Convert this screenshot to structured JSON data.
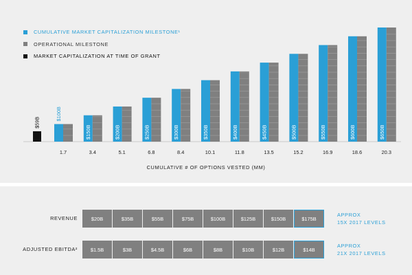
{
  "chart_data": {
    "type": "bar",
    "legend": [
      {
        "label": "CUMULATIVE MARKET CAPITALIZATION MILESTONE¹",
        "color": "#2a9fd6"
      },
      {
        "label": "OPERATIONAL MILESTONE",
        "color": "#808080"
      },
      {
        "label": "MARKET CAPITALIZATION AT TIME OF GRANT",
        "color": "#111111"
      }
    ],
    "grant_bar": {
      "value": 59,
      "label": "$59B",
      "color": "#111111"
    },
    "categories": [
      "1.7",
      "3.4",
      "5.1",
      "6.8",
      "8.4",
      "10.1",
      "11.8",
      "13.5",
      "15.2",
      "16.9",
      "18.6",
      "20.3"
    ],
    "milestones": [
      100,
      150,
      200,
      250,
      300,
      350,
      400,
      450,
      500,
      550,
      600,
      650
    ],
    "milestone_labels": [
      "$100B",
      "$150B",
      "$200B",
      "$250B",
      "$300B",
      "$350B",
      "$400B",
      "$450B",
      "$500B",
      "$550B",
      "$600B",
      "$650B"
    ],
    "operational": [
      100,
      150,
      200,
      250,
      300,
      350,
      400,
      450,
      500,
      550,
      600,
      650
    ],
    "xlabel": "CUMULATIVE # OF OPTIONS VESTED (MM)",
    "ylim": [
      0,
      650
    ],
    "colors": {
      "blue": "#2a9fd6",
      "gray": "#808080",
      "black": "#111111",
      "stripe": "#a0a0a0"
    }
  },
  "table": {
    "revenue": {
      "label": "REVENUE",
      "values": [
        "$20B",
        "$35B",
        "$55B",
        "$75B",
        "$100B",
        "$125B",
        "$150B",
        "$175B"
      ],
      "note_line1": "APPROX",
      "note_line2": "15X 2017 LEVELS"
    },
    "ebitda": {
      "label": "ADJUSTED EBITDA²",
      "values": [
        "$1.5B",
        "$3B",
        "$4.5B",
        "$6B",
        "$8B",
        "$10B",
        "$12B",
        "$14B"
      ],
      "note_line1": "APPROX",
      "note_line2": "21X 2017 LEVELS"
    }
  }
}
